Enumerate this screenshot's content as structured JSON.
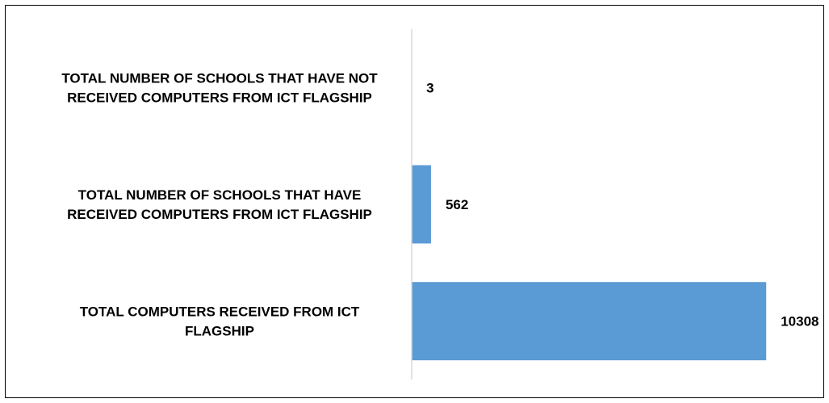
{
  "chart_data": {
    "type": "bar",
    "orientation": "horizontal",
    "categories": [
      "TOTAL NUMBER OF SCHOOLS THAT HAVE NOT RECEIVED COMPUTERS FROM ICT FLAGSHIP",
      "TOTAL NUMBER OF SCHOOLS THAT HAVE RECEIVED COMPUTERS FROM ICT FLAGSHIP",
      "TOTAL COMPUTERS RECEIVED FROM ICT FLAGSHIP"
    ],
    "category_lines": [
      [
        "TOTAL NUMBER OF SCHOOLS THAT HAVE NOT",
        "RECEIVED COMPUTERS FROM ICT FLAGSHIP"
      ],
      [
        "TOTAL NUMBER OF SCHOOLS THAT HAVE",
        "RECEIVED COMPUTERS FROM ICT FLAGSHIP"
      ],
      [
        "TOTAL COMPUTERS RECEIVED FROM ICT",
        "FLAGSHIP"
      ]
    ],
    "values": [
      3,
      562,
      10308
    ],
    "data_labels": [
      "3",
      "562",
      "10308"
    ],
    "xlim": [
      0,
      11500
    ],
    "bar_color": "#5b9bd5",
    "axis_color": "#d9d9d9",
    "grid": false,
    "legend": "none",
    "title": "",
    "xlabel": "",
    "ylabel": ""
  }
}
